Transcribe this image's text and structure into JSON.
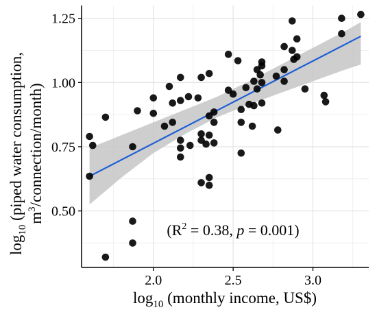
{
  "chart_data": {
    "type": "scatter",
    "title": "",
    "xlabel": {
      "log": "log",
      "sub": "10",
      "rest": " (monthly income, US$)"
    },
    "ylabel": {
      "line1_log": "log",
      "line1_sub": "10",
      "line1_rest": " (piped water consumption,",
      "line2_pre": "m",
      "line2_sup": "3",
      "line2_post": "/connection/month)"
    },
    "annotation": {
      "prefix": "(R",
      "sup": "2",
      "mid": " = 0.38, ",
      "italic": "p",
      "suffix": " = 0.001)"
    },
    "xlim": [
      1.55,
      3.35
    ],
    "ylim": [
      0.28,
      1.3
    ],
    "x_ticks": [
      2.0,
      2.5,
      3.0
    ],
    "x_tick_labels": [
      "2.0",
      "2.5",
      "3.0"
    ],
    "y_ticks": [
      0.5,
      0.75,
      1.0,
      1.25
    ],
    "y_tick_labels": [
      "0.50",
      "0.75",
      "1.00",
      "1.25"
    ],
    "grid": true,
    "legend": "none",
    "point_color": "#000000",
    "fit_color": "#1f5fd6",
    "band_color": "#c6c6c6",
    "fit_line": {
      "x": [
        1.6,
        3.3
      ],
      "y": [
        0.635,
        1.18
      ]
    },
    "confidence_band": {
      "x": [
        1.6,
        1.8,
        2.0,
        2.2,
        2.4,
        2.6,
        2.8,
        3.0,
        3.2,
        3.3
      ],
      "lower": [
        0.525,
        0.63,
        0.725,
        0.8,
        0.865,
        0.915,
        0.96,
        1.005,
        1.05,
        1.07
      ],
      "upper": [
        0.745,
        0.795,
        0.845,
        0.895,
        0.945,
        1.005,
        1.07,
        1.135,
        1.2,
        1.235
      ]
    },
    "points": [
      {
        "x": 1.6,
        "y": 0.79
      },
      {
        "x": 1.62,
        "y": 0.755
      },
      {
        "x": 1.6,
        "y": 0.635
      },
      {
        "x": 1.7,
        "y": 0.865
      },
      {
        "x": 1.7,
        "y": 0.32
      },
      {
        "x": 1.87,
        "y": 0.75
      },
      {
        "x": 1.87,
        "y": 0.46
      },
      {
        "x": 1.87,
        "y": 0.375
      },
      {
        "x": 1.9,
        "y": 0.89
      },
      {
        "x": 2.0,
        "y": 0.94
      },
      {
        "x": 2.0,
        "y": 0.88
      },
      {
        "x": 2.07,
        "y": 0.83
      },
      {
        "x": 2.1,
        "y": 0.985
      },
      {
        "x": 2.12,
        "y": 0.845
      },
      {
        "x": 2.12,
        "y": 0.92
      },
      {
        "x": 2.17,
        "y": 1.02
      },
      {
        "x": 2.17,
        "y": 0.93
      },
      {
        "x": 2.17,
        "y": 0.775
      },
      {
        "x": 2.17,
        "y": 0.745
      },
      {
        "x": 2.17,
        "y": 0.71
      },
      {
        "x": 2.22,
        "y": 0.945
      },
      {
        "x": 2.23,
        "y": 0.755
      },
      {
        "x": 2.28,
        "y": 0.94
      },
      {
        "x": 2.3,
        "y": 1.02
      },
      {
        "x": 2.3,
        "y": 0.8
      },
      {
        "x": 2.3,
        "y": 0.775
      },
      {
        "x": 2.3,
        "y": 0.61
      },
      {
        "x": 2.33,
        "y": 0.76
      },
      {
        "x": 2.35,
        "y": 1.035
      },
      {
        "x": 2.35,
        "y": 0.87
      },
      {
        "x": 2.35,
        "y": 0.795
      },
      {
        "x": 2.35,
        "y": 0.63
      },
      {
        "x": 2.35,
        "y": 0.6
      },
      {
        "x": 2.38,
        "y": 0.885
      },
      {
        "x": 2.38,
        "y": 0.845
      },
      {
        "x": 2.38,
        "y": 0.765
      },
      {
        "x": 2.47,
        "y": 1.11
      },
      {
        "x": 2.47,
        "y": 0.97
      },
      {
        "x": 2.5,
        "y": 0.955
      },
      {
        "x": 2.53,
        "y": 1.085
      },
      {
        "x": 2.55,
        "y": 0.895
      },
      {
        "x": 2.55,
        "y": 0.845
      },
      {
        "x": 2.55,
        "y": 0.725
      },
      {
        "x": 2.58,
        "y": 0.98
      },
      {
        "x": 2.6,
        "y": 0.915
      },
      {
        "x": 2.62,
        "y": 0.83
      },
      {
        "x": 2.63,
        "y": 0.91
      },
      {
        "x": 2.63,
        "y": 1.005
      },
      {
        "x": 2.65,
        "y": 1.05
      },
      {
        "x": 2.65,
        "y": 0.975
      },
      {
        "x": 2.67,
        "y": 1.03
      },
      {
        "x": 2.68,
        "y": 1.08
      },
      {
        "x": 2.68,
        "y": 1.065
      },
      {
        "x": 2.68,
        "y": 1.0
      },
      {
        "x": 2.68,
        "y": 0.92
      },
      {
        "x": 2.77,
        "y": 1.025
      },
      {
        "x": 2.78,
        "y": 0.815
      },
      {
        "x": 2.82,
        "y": 1.14
      },
      {
        "x": 2.82,
        "y": 1.05
      },
      {
        "x": 2.82,
        "y": 1.005
      },
      {
        "x": 2.87,
        "y": 1.24
      },
      {
        "x": 2.87,
        "y": 1.125
      },
      {
        "x": 2.88,
        "y": 1.09
      },
      {
        "x": 2.9,
        "y": 1.17
      },
      {
        "x": 2.9,
        "y": 1.1
      },
      {
        "x": 2.95,
        "y": 0.975
      },
      {
        "x": 3.07,
        "y": 0.95
      },
      {
        "x": 3.08,
        "y": 0.925
      },
      {
        "x": 3.18,
        "y": 1.25
      },
      {
        "x": 3.18,
        "y": 1.19
      },
      {
        "x": 3.3,
        "y": 1.265
      }
    ]
  }
}
